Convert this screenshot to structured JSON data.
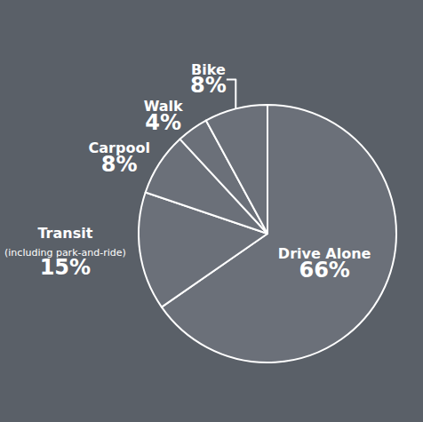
{
  "chart_data": {
    "type": "pie",
    "categories": [
      "Drive Alone",
      "Transit (including park-and-ride)",
      "Carpool",
      "Walk",
      "Bike"
    ],
    "values": [
      66,
      15,
      8,
      4,
      8
    ],
    "value_labels": [
      "66%",
      "15%",
      "8%",
      "4%",
      "8%"
    ],
    "color": "#6b7079",
    "data_labels": true
  }
}
